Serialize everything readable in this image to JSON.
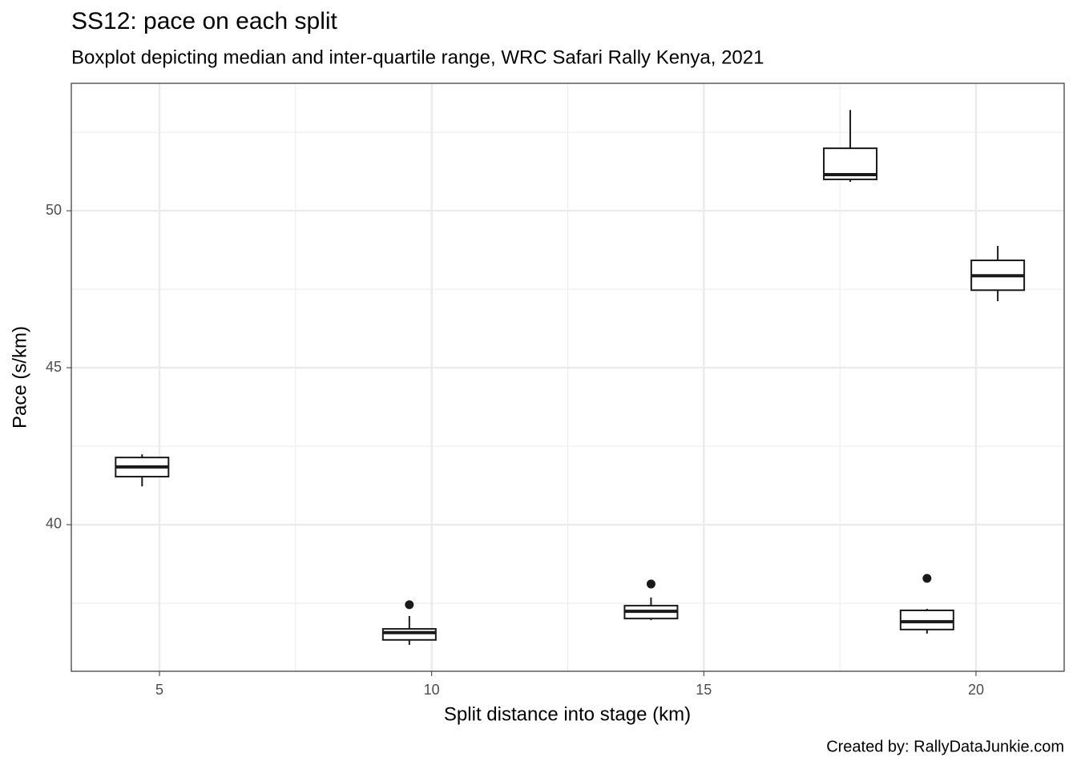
{
  "chart_data": {
    "type": "boxplot",
    "title": "SS12: pace on each split",
    "subtitle": "Boxplot depicting median and inter-quartile range, WRC Safari Rally Kenya, 2021",
    "x_label": "Split distance into stage (km)",
    "y_label": "Pace (s/km)",
    "caption": "Created by: RallyDataJunkie.com",
    "xlim": [
      3.38,
      21.62
    ],
    "ylim": [
      35.33,
      54.06
    ],
    "xticks": [
      5,
      10,
      15,
      20
    ],
    "yticks": [
      40,
      45,
      50
    ],
    "x_minor_ticks": [
      7.5,
      12.5,
      17.5
    ],
    "y_minor_ticks": [
      37.5,
      42.5,
      47.5,
      52.5
    ],
    "grid": true,
    "color": "#1a1a1a",
    "boxes": [
      {
        "x": 4.68,
        "whislo": 41.22,
        "q1": 41.53,
        "med": 41.84,
        "q3": 42.14,
        "whishi": 42.24,
        "fliers": []
      },
      {
        "x": 9.59,
        "whislo": 36.17,
        "q1": 36.33,
        "med": 36.56,
        "q3": 36.68,
        "whishi": 37.09,
        "fliers": [
          37.45
        ]
      },
      {
        "x": 14.03,
        "whislo": 36.96,
        "q1": 37.01,
        "med": 37.24,
        "q3": 37.42,
        "whishi": 37.68,
        "fliers": [
          38.11
        ]
      },
      {
        "x": 17.69,
        "whislo": 50.92,
        "q1": 51.0,
        "med": 51.15,
        "q3": 51.99,
        "whishi": 53.21,
        "fliers": []
      },
      {
        "x": 19.1,
        "whislo": 36.53,
        "q1": 36.66,
        "med": 36.91,
        "q3": 37.27,
        "whishi": 37.32,
        "fliers": [
          38.29
        ]
      },
      {
        "x": 20.4,
        "whislo": 47.12,
        "q1": 47.47,
        "med": 47.93,
        "q3": 48.42,
        "whishi": 48.88,
        "fliers": []
      }
    ]
  }
}
